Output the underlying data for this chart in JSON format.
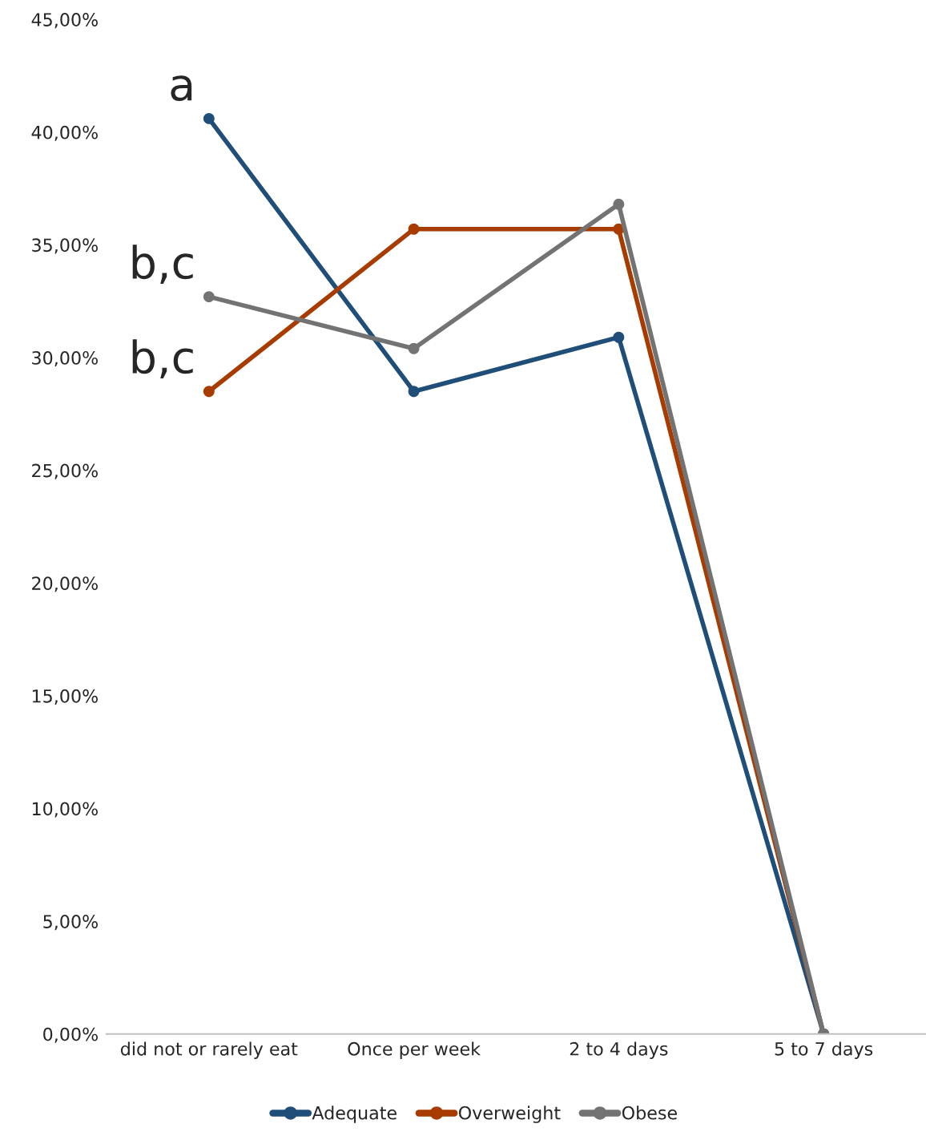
{
  "chart_data": {
    "type": "line",
    "categories": [
      "did not or rarely eat",
      "Once per week",
      "2 to 4 days",
      "5 to 7 days"
    ],
    "series": [
      {
        "name": "Adequate",
        "color": "#1f4e79",
        "values": [
          40.6,
          28.5,
          30.9,
          0
        ]
      },
      {
        "name": "Overweight",
        "color": "#a83c00",
        "values": [
          28.5,
          35.7,
          35.7,
          0
        ]
      },
      {
        "name": "Obese",
        "color": "#737373",
        "values": [
          32.7,
          30.4,
          36.8,
          0
        ]
      }
    ],
    "ylim": [
      0,
      45
    ],
    "yticks": [
      {
        "value": 0,
        "label": "0,00%"
      },
      {
        "value": 5,
        "label": "5,00%"
      },
      {
        "value": 10,
        "label": "10,00%"
      },
      {
        "value": 15,
        "label": "15,00%"
      },
      {
        "value": 20,
        "label": "20,00%"
      },
      {
        "value": 25,
        "label": "25,00%"
      },
      {
        "value": 30,
        "label": "30,00%"
      },
      {
        "value": 35,
        "label": "35,00%"
      },
      {
        "value": 40,
        "label": "40,00%"
      },
      {
        "value": 45,
        "label": "45,00%"
      }
    ],
    "annotations": [
      {
        "text": "a",
        "x": "did not or rarely eat",
        "y": 40.6
      },
      {
        "text": "b,c",
        "x": "did not or rarely eat",
        "y": 32.7
      },
      {
        "text": "b,c",
        "x": "did not or rarely eat",
        "y": 28.5
      }
    ],
    "marker": "circle",
    "line_style": "solid",
    "legend": "bottom",
    "grid": false
  }
}
